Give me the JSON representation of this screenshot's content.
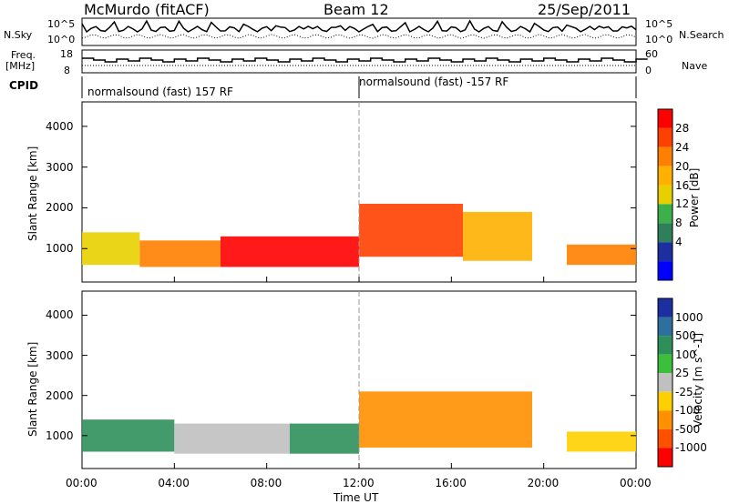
{
  "header": {
    "station": "McMurdo (fitACF)",
    "beam": "Beam 12",
    "date": "25/Sep/2011"
  },
  "summary_panels": {
    "nsky_label": "N.Sky",
    "nsky_ticks": [
      "10^5",
      "10^0"
    ],
    "nsearch_label": "N.Search",
    "nsearch_ticks": [
      "10^5",
      "10^0"
    ],
    "freq_label_line1": "Freq.",
    "freq_label_line2": "[MHz]",
    "freq_ticks": [
      "18",
      "8"
    ],
    "nave_label": "Nave",
    "nave_ticks": [
      "60",
      "0"
    ],
    "cpid_label": "CPID",
    "cpid_segments": [
      {
        "label": "normalsound (fast) 157 RF",
        "start_hour": 0,
        "end_hour": 12
      },
      {
        "label": "normalsound (fast) -157 RF",
        "start_hour": 12,
        "end_hour": 24
      }
    ]
  },
  "axes": {
    "ylabel": "Slant Range [km]",
    "y_ticks": [
      "4000",
      "3000",
      "2000",
      "1000"
    ],
    "x_ticks": [
      "00:00",
      "04:00",
      "08:00",
      "12:00",
      "16:00",
      "20:00",
      "00:00"
    ],
    "xlabel": "Time UT"
  },
  "chart_data": [
    {
      "type": "heatmap",
      "panel": "power",
      "xlabel": "Time UT",
      "ylabel": "Slant Range [km]",
      "x_range_hours": [
        0,
        24
      ],
      "ylim": [
        180,
        4600
      ],
      "colorbar_label": "Power [dB]",
      "colorbar_ticks": [
        "28",
        "24",
        "20",
        "16",
        "12",
        "8",
        "4"
      ],
      "colorbar_colors": [
        "#ff0000",
        "#ff4000",
        "#ff8000",
        "#ffb000",
        "#e8d000",
        "#3cb04a",
        "#2f7f5a",
        "#1c2fa0",
        "#0000ff"
      ],
      "regions": [
        {
          "t_start": 0.0,
          "t_end": 2.5,
          "r_low": 600,
          "r_high": 1400,
          "level": 12
        },
        {
          "t_start": 2.5,
          "t_end": 6.0,
          "r_low": 550,
          "r_high": 1200,
          "level": 20
        },
        {
          "t_start": 6.0,
          "t_end": 12.0,
          "r_low": 550,
          "r_high": 1300,
          "level": 28
        },
        {
          "t_start": 12.0,
          "t_end": 16.5,
          "r_low": 800,
          "r_high": 2100,
          "level": 24
        },
        {
          "t_start": 16.5,
          "t_end": 19.5,
          "r_low": 700,
          "r_high": 1900,
          "level": 16
        },
        {
          "t_start": 21.0,
          "t_end": 24.0,
          "r_low": 600,
          "r_high": 1100,
          "level": 20
        }
      ]
    },
    {
      "type": "heatmap",
      "panel": "velocity",
      "xlabel": "Time UT",
      "ylabel": "Slant Range [km]",
      "x_range_hours": [
        0,
        24
      ],
      "ylim": [
        180,
        4600
      ],
      "colorbar_label": "Velocity [m s^-1]",
      "colorbar_ticks": [
        "1000",
        "500",
        "100",
        "25",
        "-25",
        "-100",
        "-500",
        "-1000"
      ],
      "colorbar_colors": [
        "#1c2fa0",
        "#2f6fa0",
        "#2f8f5a",
        "#3cc03c",
        "#c0c0c0",
        "#ffd000",
        "#ff9000",
        "#ff5000",
        "#ff0000"
      ],
      "regions": [
        {
          "t_start": 0.0,
          "t_end": 4.0,
          "r_low": 600,
          "r_high": 1400,
          "value": 100
        },
        {
          "t_start": 4.0,
          "t_end": 9.0,
          "r_low": 550,
          "r_high": 1300,
          "value": 0
        },
        {
          "t_start": 9.0,
          "t_end": 12.0,
          "r_low": 550,
          "r_high": 1300,
          "value": 100
        },
        {
          "t_start": 12.0,
          "t_end": 19.5,
          "r_low": 700,
          "r_high": 2100,
          "value": -300
        },
        {
          "t_start": 21.0,
          "t_end": 24.0,
          "r_low": 600,
          "r_high": 1100,
          "value": -100
        }
      ]
    }
  ]
}
